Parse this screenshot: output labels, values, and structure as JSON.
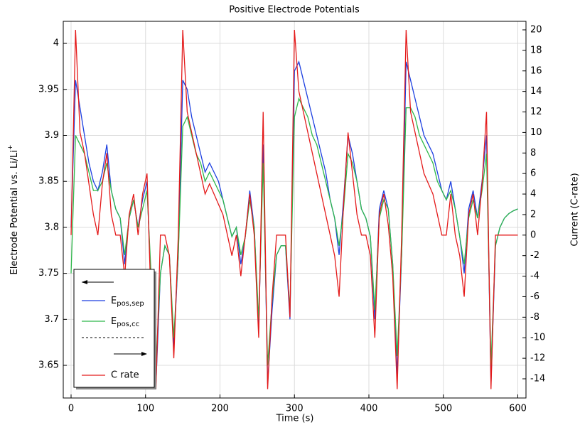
{
  "chart_data": {
    "type": "line",
    "title": "Positive Electrode Potentials",
    "xlabel": "Time (s)",
    "ylabel": "Electrode Potential vs. Li/Li+",
    "y2label": "Current (C-rate)",
    "x": [
      0,
      6,
      12,
      18,
      24,
      30,
      36,
      42,
      48,
      54,
      60,
      66,
      72,
      78,
      84,
      90,
      96,
      102,
      108,
      114,
      120,
      126,
      132,
      138,
      144,
      150,
      156,
      162,
      168,
      174,
      180,
      186,
      192,
      198,
      204,
      210,
      216,
      222,
      228,
      234,
      240,
      246,
      252,
      258,
      264,
      270,
      276,
      282,
      288,
      294,
      300,
      306,
      312,
      318,
      324,
      330,
      336,
      342,
      348,
      354,
      360,
      366,
      372,
      378,
      384,
      390,
      396,
      402,
      408,
      414,
      420,
      426,
      432,
      438,
      444,
      450,
      456,
      462,
      468,
      474,
      480,
      486,
      492,
      498,
      504,
      510,
      516,
      522,
      528,
      534,
      540,
      546,
      552,
      558,
      564,
      570,
      576,
      582,
      588,
      594,
      600
    ],
    "series": [
      {
        "name": "Epos,sep",
        "color": "#1c3fe0",
        "values": [
          3.8,
          3.96,
          3.93,
          3.9,
          3.87,
          3.85,
          3.84,
          3.86,
          3.89,
          3.84,
          3.82,
          3.81,
          3.76,
          3.81,
          3.83,
          3.8,
          3.83,
          3.85,
          3.72,
          3.63,
          3.75,
          3.78,
          3.77,
          3.67,
          3.77,
          3.96,
          3.95,
          3.92,
          3.9,
          3.88,
          3.86,
          3.87,
          3.86,
          3.85,
          3.83,
          3.81,
          3.79,
          3.8,
          3.76,
          3.79,
          3.84,
          3.8,
          3.69,
          3.89,
          3.63,
          3.71,
          3.77,
          3.78,
          3.78,
          3.7,
          3.97,
          3.98,
          3.96,
          3.94,
          3.92,
          3.9,
          3.88,
          3.86,
          3.83,
          3.81,
          3.77,
          3.83,
          3.9,
          3.88,
          3.85,
          3.82,
          3.81,
          3.79,
          3.7,
          3.82,
          3.84,
          3.82,
          3.76,
          3.64,
          3.77,
          3.98,
          3.96,
          3.94,
          3.92,
          3.9,
          3.89,
          3.88,
          3.86,
          3.84,
          3.83,
          3.85,
          3.82,
          3.79,
          3.75,
          3.82,
          3.84,
          3.81,
          3.85,
          3.9,
          3.63,
          3.78,
          3.8,
          3.81,
          3.815,
          3.818,
          3.82
        ]
      },
      {
        "name": "Epos,cc",
        "color": "#2eb84a",
        "values": [
          3.75,
          3.9,
          3.89,
          3.88,
          3.86,
          3.84,
          3.84,
          3.85,
          3.87,
          3.84,
          3.82,
          3.81,
          3.77,
          3.81,
          3.83,
          3.8,
          3.82,
          3.84,
          3.74,
          3.65,
          3.75,
          3.78,
          3.77,
          3.68,
          3.77,
          3.91,
          3.92,
          3.9,
          3.88,
          3.87,
          3.85,
          3.86,
          3.85,
          3.84,
          3.83,
          3.81,
          3.79,
          3.8,
          3.77,
          3.79,
          3.83,
          3.8,
          3.7,
          3.87,
          3.65,
          3.72,
          3.77,
          3.78,
          3.78,
          3.71,
          3.92,
          3.94,
          3.93,
          3.92,
          3.9,
          3.89,
          3.87,
          3.85,
          3.83,
          3.81,
          3.78,
          3.82,
          3.88,
          3.87,
          3.85,
          3.82,
          3.81,
          3.79,
          3.71,
          3.81,
          3.83,
          3.82,
          3.76,
          3.66,
          3.77,
          3.93,
          3.93,
          3.92,
          3.9,
          3.89,
          3.88,
          3.87,
          3.85,
          3.84,
          3.83,
          3.84,
          3.82,
          3.79,
          3.76,
          3.81,
          3.83,
          3.81,
          3.84,
          3.88,
          3.65,
          3.78,
          3.8,
          3.81,
          3.815,
          3.818,
          3.82
        ]
      },
      {
        "name": "C rate",
        "color": "#e41a1a",
        "axis": "y2",
        "values": [
          0,
          20,
          10,
          8,
          5,
          2,
          0,
          5,
          8,
          2,
          0,
          0,
          -4,
          2,
          4,
          0,
          4,
          6,
          -8,
          -15,
          0,
          0,
          -2,
          -12,
          0,
          20,
          12,
          10,
          8,
          6,
          4,
          5,
          4,
          3,
          2,
          0,
          -2,
          0,
          -4,
          0,
          4,
          0,
          -10,
          12,
          -15,
          -6,
          0,
          0,
          0,
          -8,
          20,
          14,
          12,
          10,
          8,
          6,
          4,
          2,
          0,
          -2,
          -6,
          3,
          10,
          6,
          2,
          0,
          0,
          -2,
          -10,
          2,
          4,
          1,
          -4,
          -15,
          0,
          20,
          12,
          10,
          8,
          6,
          5,
          4,
          2,
          0,
          0,
          4,
          0,
          -2,
          -6,
          2,
          4,
          0,
          5,
          12,
          -15,
          0,
          0,
          0,
          0,
          0,
          0
        ]
      }
    ],
    "xlim": [
      -10.5,
      611
    ],
    "xticks": [
      0,
      100,
      200,
      300,
      400,
      500,
      600
    ],
    "ylim": [
      3.6145,
      4.024
    ],
    "yticks": [
      3.65,
      3.7,
      3.75,
      3.8,
      3.85,
      3.9,
      3.95,
      4
    ],
    "y2lim": [
      -15.87,
      20.83
    ],
    "y2ticks": [
      -14,
      -12,
      -10,
      -8,
      -6,
      -4,
      -2,
      0,
      2,
      4,
      6,
      8,
      10,
      12,
      14,
      16,
      18,
      20
    ],
    "grid": true
  }
}
